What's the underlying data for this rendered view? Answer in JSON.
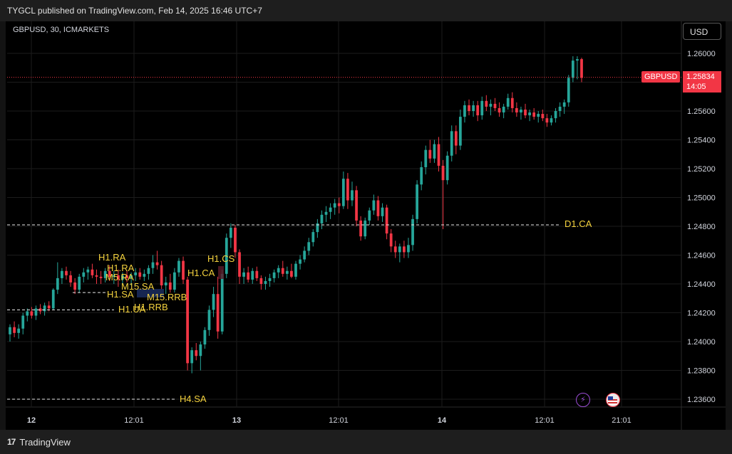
{
  "header": {
    "published_by": "TYGCL published on TradingView.com, Feb 14, 2025 16:46 UTC+7"
  },
  "chart_header": {
    "symbol_line": "GBPUSD, 30, ICMARKETS",
    "currency_button": "USD"
  },
  "footer": {
    "brand": "TradingView",
    "brand_mark": "17"
  },
  "price_tag": {
    "symbol": "GBPUSD",
    "price": "1.25834",
    "countdown": "14:05"
  },
  "icons": {
    "lightning": "lightning-icon",
    "flag": "us-flag-icon"
  },
  "colors": {
    "up": "#26a69a",
    "down": "#f23645",
    "level": "#f5d33e",
    "background": "#000000"
  },
  "chart_data": {
    "type": "candlestick",
    "symbol": "GBPUSD",
    "timeframe": "30",
    "broker": "ICMARKETS",
    "grid": true,
    "ylim": [
      1.2355,
      1.2615
    ],
    "y_ticks": [
      "1.26000",
      "1.25800",
      "1.25600",
      "1.25400",
      "1.25200",
      "1.25000",
      "1.24800",
      "1.24600",
      "1.24400",
      "1.24200",
      "1.24000",
      "1.23800",
      "1.23600"
    ],
    "x_ticks": [
      {
        "label": "12",
        "major": true
      },
      {
        "label": "12:01",
        "major": false
      },
      {
        "label": "13",
        "major": true
      },
      {
        "label": "12:01",
        "major": false
      },
      {
        "label": "14",
        "major": true
      },
      {
        "label": "12:01",
        "major": false
      },
      {
        "label": "21:01",
        "major": false
      }
    ],
    "last_price": 1.25834,
    "levels": [
      {
        "label": "D1.CA",
        "price": 1.2481
      },
      {
        "label": "H1.UA",
        "price": 1.2422
      },
      {
        "label": "H4.SA",
        "price": 1.236
      },
      {
        "label": "H1.SA",
        "price": 1.2434
      }
    ],
    "annotations": [
      {
        "label": "H1.RA"
      },
      {
        "label": "H1.RA"
      },
      {
        "label": "M5.RA"
      },
      {
        "label": "M15.SA"
      },
      {
        "label": "H1.SA"
      },
      {
        "label": "M15.RRB"
      },
      {
        "label": "H1.RRB"
      },
      {
        "label": "H1.UA"
      },
      {
        "label": "H1.CS"
      },
      {
        "label": "H1.CA"
      },
      {
        "label": "D1.CA"
      },
      {
        "label": "H4.SA"
      }
    ],
    "candles_ohlc": [
      [
        1.2405,
        1.2412,
        1.24,
        1.241
      ],
      [
        1.241,
        1.2414,
        1.2403,
        1.2406
      ],
      [
        1.2406,
        1.2412,
        1.2402,
        1.2409
      ],
      [
        1.2409,
        1.242,
        1.2405,
        1.2418
      ],
      [
        1.2418,
        1.2423,
        1.2414,
        1.2421
      ],
      [
        1.2421,
        1.2424,
        1.2416,
        1.2418
      ],
      [
        1.2418,
        1.2425,
        1.2415,
        1.2423
      ],
      [
        1.2423,
        1.2426,
        1.2419,
        1.2421
      ],
      [
        1.2421,
        1.2427,
        1.2418,
        1.2425
      ],
      [
        1.2425,
        1.2428,
        1.2421,
        1.2423
      ],
      [
        1.2423,
        1.2437,
        1.2422,
        1.2436
      ],
      [
        1.2436,
        1.2455,
        1.2433,
        1.2444
      ],
      [
        1.2444,
        1.2451,
        1.244,
        1.2449
      ],
      [
        1.2449,
        1.2452,
        1.2443,
        1.2446
      ],
      [
        1.2446,
        1.2449,
        1.2438,
        1.2441
      ],
      [
        1.2441,
        1.2444,
        1.2433,
        1.2436
      ],
      [
        1.2436,
        1.2447,
        1.2434,
        1.2445
      ],
      [
        1.2445,
        1.2451,
        1.2441,
        1.2448
      ],
      [
        1.2448,
        1.2452,
        1.2443,
        1.245
      ],
      [
        1.245,
        1.2454,
        1.2444,
        1.2446
      ],
      [
        1.2446,
        1.245,
        1.244,
        1.2445
      ],
      [
        1.2445,
        1.2449,
        1.244,
        1.2444
      ],
      [
        1.2444,
        1.2451,
        1.2441,
        1.2449
      ],
      [
        1.2449,
        1.2453,
        1.2442,
        1.2445
      ],
      [
        1.2445,
        1.2449,
        1.244,
        1.2446
      ],
      [
        1.2446,
        1.245,
        1.2438,
        1.2443
      ],
      [
        1.2443,
        1.2448,
        1.244,
        1.2446
      ],
      [
        1.2446,
        1.2449,
        1.2441,
        1.2444
      ],
      [
        1.2444,
        1.2448,
        1.2439,
        1.2446
      ],
      [
        1.2446,
        1.2451,
        1.2442,
        1.2448
      ],
      [
        1.2448,
        1.2451,
        1.2443,
        1.2445
      ],
      [
        1.2445,
        1.245,
        1.2442,
        1.2447
      ],
      [
        1.2447,
        1.2453,
        1.2443,
        1.2451
      ],
      [
        1.2451,
        1.246,
        1.2447,
        1.2455
      ],
      [
        1.2455,
        1.2463,
        1.245,
        1.2453
      ],
      [
        1.2453,
        1.2456,
        1.2436,
        1.2439
      ],
      [
        1.2439,
        1.2445,
        1.2433,
        1.2441
      ],
      [
        1.2441,
        1.2447,
        1.2434,
        1.2436
      ],
      [
        1.2436,
        1.2451,
        1.2434,
        1.2448
      ],
      [
        1.2448,
        1.2458,
        1.2445,
        1.2456
      ],
      [
        1.2456,
        1.2459,
        1.244,
        1.2443
      ],
      [
        1.2443,
        1.2445,
        1.238,
        1.2385
      ],
      [
        1.2385,
        1.2396,
        1.2378,
        1.2394
      ],
      [
        1.2394,
        1.2399,
        1.2387,
        1.239
      ],
      [
        1.239,
        1.24,
        1.238,
        1.2398
      ],
      [
        1.2398,
        1.241,
        1.2395,
        1.2408
      ],
      [
        1.2408,
        1.2425,
        1.2404,
        1.2422
      ],
      [
        1.2422,
        1.2438,
        1.2417,
        1.2433
      ],
      [
        1.2433,
        1.2445,
        1.2402,
        1.2407
      ],
      [
        1.2407,
        1.245,
        1.2405,
        1.2447
      ],
      [
        1.2447,
        1.2475,
        1.2444,
        1.2472
      ],
      [
        1.2472,
        1.2482,
        1.2465,
        1.2479
      ],
      [
        1.2479,
        1.2481,
        1.2458,
        1.2462
      ],
      [
        1.2462,
        1.2464,
        1.244,
        1.2445
      ],
      [
        1.2445,
        1.2451,
        1.244,
        1.2448
      ],
      [
        1.2448,
        1.2452,
        1.2441,
        1.2443
      ],
      [
        1.2443,
        1.2451,
        1.244,
        1.2449
      ],
      [
        1.2449,
        1.2452,
        1.2442,
        1.2444
      ],
      [
        1.2444,
        1.2446,
        1.2436,
        1.244
      ],
      [
        1.244,
        1.2445,
        1.2436,
        1.2442
      ],
      [
        1.2442,
        1.2447,
        1.2438,
        1.2444
      ],
      [
        1.2444,
        1.245,
        1.2441,
        1.2448
      ],
      [
        1.2448,
        1.2453,
        1.2444,
        1.2451
      ],
      [
        1.2451,
        1.2456,
        1.2445,
        1.2447
      ],
      [
        1.2447,
        1.2452,
        1.2443,
        1.2449
      ],
      [
        1.2449,
        1.2454,
        1.2444,
        1.2445
      ],
      [
        1.2445,
        1.2456,
        1.2443,
        1.2454
      ],
      [
        1.2454,
        1.246,
        1.245,
        1.2457
      ],
      [
        1.2457,
        1.2466,
        1.2455,
        1.2463
      ],
      [
        1.2463,
        1.2472,
        1.246,
        1.2469
      ],
      [
        1.2469,
        1.2478,
        1.2466,
        1.2476
      ],
      [
        1.2476,
        1.2485,
        1.2472,
        1.2482
      ],
      [
        1.2482,
        1.2491,
        1.2478,
        1.2488
      ],
      [
        1.2488,
        1.2494,
        1.2483,
        1.249
      ],
      [
        1.249,
        1.2496,
        1.2485,
        1.2493
      ],
      [
        1.2493,
        1.2499,
        1.2488,
        1.2496
      ],
      [
        1.2496,
        1.25,
        1.2489,
        1.2494
      ],
      [
        1.2494,
        1.2518,
        1.2492,
        1.2513
      ],
      [
        1.2513,
        1.2517,
        1.2492,
        1.2498
      ],
      [
        1.2498,
        1.2511,
        1.2494,
        1.2505
      ],
      [
        1.2505,
        1.2508,
        1.248,
        1.2484
      ],
      [
        1.2484,
        1.2487,
        1.247,
        1.2473
      ],
      [
        1.2473,
        1.2486,
        1.2471,
        1.2484
      ],
      [
        1.2484,
        1.2493,
        1.2481,
        1.2491
      ],
      [
        1.2491,
        1.2502,
        1.2488,
        1.2498
      ],
      [
        1.2498,
        1.2501,
        1.2484,
        1.2487
      ],
      [
        1.2487,
        1.2496,
        1.2483,
        1.2493
      ],
      [
        1.2493,
        1.2495,
        1.2471,
        1.2475
      ],
      [
        1.2475,
        1.2478,
        1.2462,
        1.2466
      ],
      [
        1.2466,
        1.247,
        1.2458,
        1.2462
      ],
      [
        1.2462,
        1.2468,
        1.2455,
        1.2466
      ],
      [
        1.2466,
        1.247,
        1.2458,
        1.2462
      ],
      [
        1.2462,
        1.2472,
        1.2458,
        1.2467
      ],
      [
        1.2467,
        1.2488,
        1.2463,
        1.2485
      ],
      [
        1.2485,
        1.2512,
        1.2482,
        1.2509
      ],
      [
        1.2509,
        1.2525,
        1.2505,
        1.2521
      ],
      [
        1.2521,
        1.2536,
        1.2516,
        1.2533
      ],
      [
        1.2533,
        1.254,
        1.2524,
        1.2527
      ],
      [
        1.2527,
        1.254,
        1.2524,
        1.2537
      ],
      [
        1.2537,
        1.2542,
        1.2518,
        1.2522
      ],
      [
        1.2522,
        1.2526,
        1.2478,
        1.2512
      ],
      [
        1.2512,
        1.2532,
        1.2509,
        1.2529
      ],
      [
        1.2529,
        1.255,
        1.2525,
        1.2546
      ],
      [
        1.2546,
        1.255,
        1.253,
        1.2536
      ],
      [
        1.2536,
        1.2561,
        1.2533,
        1.2556
      ],
      [
        1.2556,
        1.2567,
        1.2552,
        1.2564
      ],
      [
        1.2564,
        1.2568,
        1.2557,
        1.256
      ],
      [
        1.256,
        1.2567,
        1.2556,
        1.2564
      ],
      [
        1.2564,
        1.2567,
        1.2553,
        1.2557
      ],
      [
        1.2557,
        1.257,
        1.2554,
        1.2567
      ],
      [
        1.2567,
        1.2571,
        1.256,
        1.2563
      ],
      [
        1.2563,
        1.2568,
        1.2557,
        1.2565
      ],
      [
        1.2565,
        1.2569,
        1.256,
        1.2562
      ],
      [
        1.2562,
        1.2566,
        1.2556,
        1.2559
      ],
      [
        1.2559,
        1.2565,
        1.2555,
        1.2563
      ],
      [
        1.2563,
        1.2572,
        1.2561,
        1.2569
      ],
      [
        1.2569,
        1.2573,
        1.2559,
        1.2562
      ],
      [
        1.2562,
        1.2566,
        1.2556,
        1.2559
      ],
      [
        1.2559,
        1.2563,
        1.2554,
        1.2561
      ],
      [
        1.2561,
        1.2565,
        1.2555,
        1.2557
      ],
      [
        1.2557,
        1.2561,
        1.2553,
        1.2559
      ],
      [
        1.2559,
        1.2562,
        1.2554,
        1.2556
      ],
      [
        1.2556,
        1.256,
        1.2552,
        1.2558
      ],
      [
        1.2558,
        1.2561,
        1.2553,
        1.2555
      ],
      [
        1.2555,
        1.2558,
        1.2549,
        1.2552
      ],
      [
        1.2552,
        1.2557,
        1.255,
        1.2555
      ],
      [
        1.2555,
        1.2562,
        1.2552,
        1.256
      ],
      [
        1.256,
        1.2566,
        1.2556,
        1.2563
      ],
      [
        1.2563,
        1.2568,
        1.2558,
        1.2566
      ],
      [
        1.2566,
        1.2585,
        1.2563,
        1.2583
      ],
      [
        1.2583,
        1.2598,
        1.258,
        1.2595
      ],
      [
        1.2595,
        1.2598,
        1.2582,
        1.2596
      ],
      [
        1.2596,
        1.2597,
        1.258,
        1.2583
      ]
    ]
  }
}
